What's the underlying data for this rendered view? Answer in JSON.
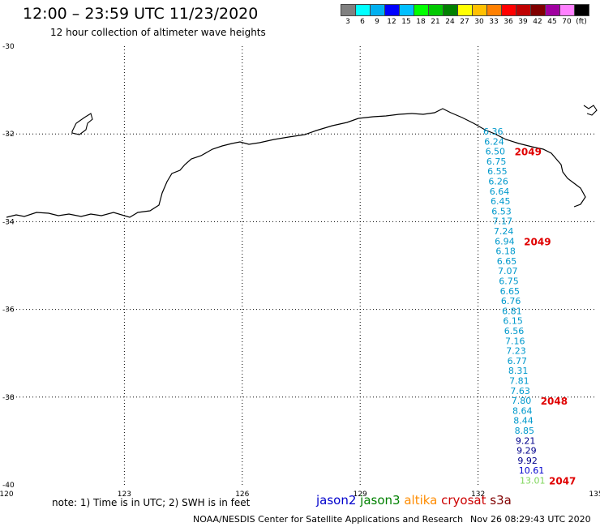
{
  "title": "12:00 – 23:59 UTC 11/23/2020",
  "subtitle": "12 hour collection of altimeter wave heights",
  "legend": {
    "colors": [
      "#808080",
      "#00ffff",
      "#00b0f0",
      "#0000ff",
      "#00bfff",
      "#00ff00",
      "#00c800",
      "#008000",
      "#ffff00",
      "#ffc000",
      "#ff8000",
      "#ff0000",
      "#c00000",
      "#800000",
      "#a000a0",
      "#ff80ff",
      "#000000"
    ],
    "labels": [
      "3",
      "6",
      "9",
      "12",
      "15",
      "18",
      "21",
      "24",
      "27",
      "30",
      "33",
      "36",
      "39",
      "42",
      "45",
      "70",
      "(ft)"
    ]
  },
  "map": {
    "lon_ticks": [
      "120",
      "123",
      "126",
      "129",
      "132",
      "135"
    ],
    "lat_ticks": [
      "-30",
      "-32",
      "-34",
      "-36",
      "-38",
      "-40"
    ],
    "lon_range": [
      120,
      135
    ],
    "lat_range": [
      -30,
      -40
    ]
  },
  "swh_values": [
    "6.36",
    "6.24",
    "6.50",
    "6.75",
    "6.55",
    "6.26",
    "6.64",
    "6.45",
    "6.53",
    "7.17",
    "7.24",
    "6.94",
    "6.18",
    "6.65",
    "7.07",
    "6.75",
    "6.65",
    "6.76",
    "6.81",
    "6.15",
    "6.56",
    "7.16",
    "7.23",
    "6.77",
    "8.31",
    "7.81",
    "7.63",
    "7.80",
    "8.64",
    "8.44",
    "8.85",
    "9.21",
    "9.29",
    "9.92",
    "10.61",
    "13.01"
  ],
  "swh_colors": [
    "#0099cc",
    "#0099cc",
    "#0099cc",
    "#0099cc",
    "#0099cc",
    "#0099cc",
    "#0099cc",
    "#0099cc",
    "#0099cc",
    "#0099cc",
    "#0099cc",
    "#0099cc",
    "#0099cc",
    "#0099cc",
    "#0099cc",
    "#0099cc",
    "#0099cc",
    "#0099cc",
    "#0099cc",
    "#0099cc",
    "#0099cc",
    "#0099cc",
    "#0099cc",
    "#0099cc",
    "#0099cc",
    "#0099cc",
    "#0099cc",
    "#0099cc",
    "#0099cc",
    "#0099cc",
    "#0099cc",
    "#00008b",
    "#00008b",
    "#00008b",
    "#0000cd",
    "#7fd65a"
  ],
  "pass_labels": [
    {
      "text": "2049",
      "after_index": 2
    },
    {
      "text": "2049",
      "after_index": 11
    },
    {
      "text": "2048",
      "after_index": 27
    },
    {
      "text": "2047",
      "after_index": 35
    }
  ],
  "note": "note: 1) Time is in UTC; 2) SWH is in feet",
  "satellites": [
    {
      "name": "jason2",
      "color": "#0000cc"
    },
    {
      "name": "jason3",
      "color": "#008000"
    },
    {
      "name": "altika",
      "color": "#ff8c00"
    },
    {
      "name": "cryosat",
      "color": "#cc0000"
    },
    {
      "name": "s3a",
      "color": "#800000"
    }
  ],
  "credit": "NOAA/NESDIS Center for Satellite Applications and Research",
  "timestamp": "Nov 26 08:29:43 UTC 2020"
}
